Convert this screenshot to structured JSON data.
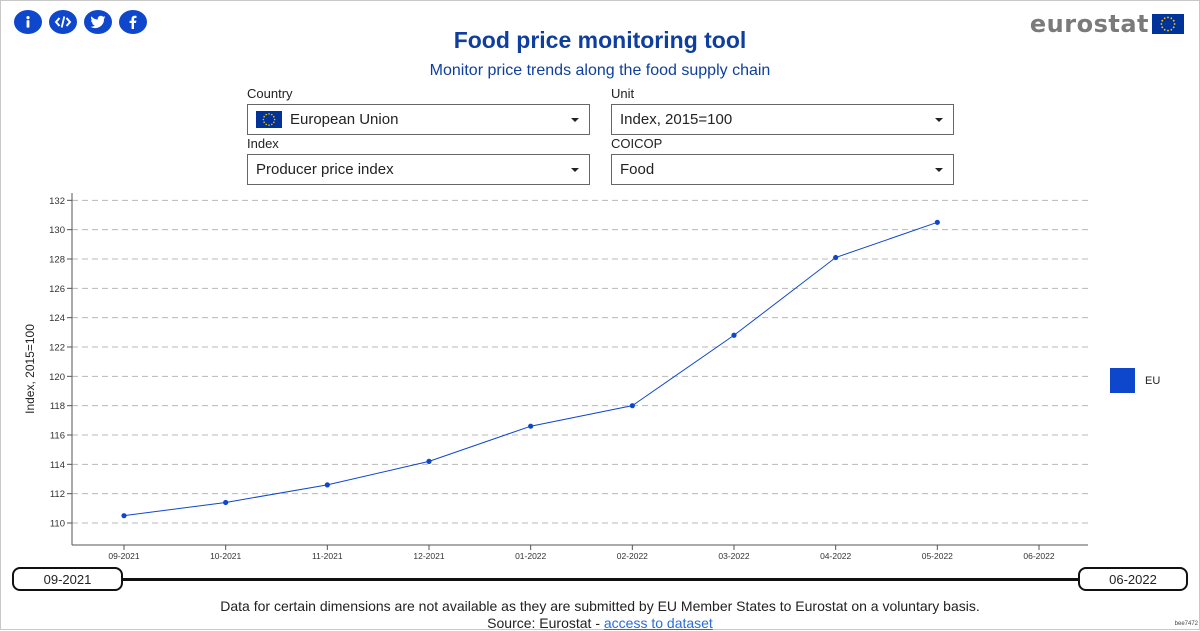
{
  "header": {
    "title": "Food price monitoring tool",
    "subtitle": "Monitor price trends along the food supply chain",
    "logo_text": "eurostat",
    "share_icons": [
      "info-icon",
      "embed-icon",
      "twitter-icon",
      "facebook-icon"
    ]
  },
  "filters": {
    "country": {
      "label": "Country",
      "value": "European Union",
      "icon": "eu-flag-icon"
    },
    "unit": {
      "label": "Unit",
      "value": "Index, 2015=100"
    },
    "index": {
      "label": "Index",
      "value": "Producer price index"
    },
    "coicop": {
      "label": "COICOP",
      "value": "Food"
    }
  },
  "chart_data": {
    "type": "line",
    "title": "",
    "xlabel": "",
    "ylabel": "Index, 2015=100",
    "categories": [
      "09-2021",
      "10-2021",
      "11-2021",
      "12-2021",
      "01-2022",
      "02-2022",
      "03-2022",
      "04-2022",
      "05-2022",
      "06-2022"
    ],
    "yticks": [
      110,
      112,
      114,
      116,
      118,
      120,
      122,
      124,
      126,
      128,
      130,
      132
    ],
    "ylim": [
      108.5,
      132.5
    ],
    "grid": true,
    "legend_position": "right",
    "series": [
      {
        "name": "EU",
        "color": "#0e47cb",
        "values": [
          110.5,
          111.4,
          112.6,
          114.2,
          116.6,
          118.0,
          122.8,
          128.1,
          130.5,
          null
        ]
      }
    ]
  },
  "range": {
    "start": "09-2021",
    "end": "06-2022"
  },
  "footer": {
    "note": "Data for certain dimensions are not available as they are submitted by EU Member States to Eurostat on a voluntary basis.",
    "source_prefix": "Source: Eurostat - ",
    "source_link": "access to dataset",
    "tag": "bee7472"
  },
  "colors": {
    "accent": "#0e47cb",
    "title": "#0e3f9e",
    "link": "#2a6cd8"
  }
}
